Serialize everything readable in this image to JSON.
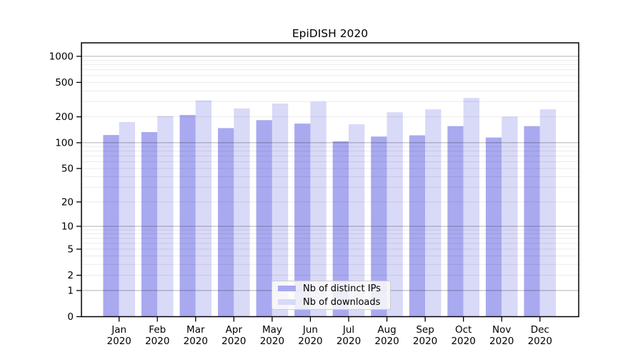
{
  "title": "EpiDISH 2020",
  "legend": {
    "items": [
      {
        "label": "Nb of distinct IPs",
        "color": "#a9a9f0"
      },
      {
        "label": "Nb of downloads",
        "color": "#d9d9f8"
      }
    ]
  },
  "chart_data": {
    "type": "bar",
    "title": "EpiDISH 2020",
    "categories": [
      "Jan 2020",
      "Feb 2020",
      "Mar 2020",
      "Apr 2020",
      "May 2020",
      "Jun 2020",
      "Jul 2020",
      "Aug 2020",
      "Sep 2020",
      "Oct 2020",
      "Nov 2020",
      "Dec 2020"
    ],
    "series": [
      {
        "name": "Nb of distinct IPs",
        "color": "#a9a9f0",
        "values": [
          123,
          133,
          210,
          148,
          183,
          167,
          104,
          118,
          122,
          156,
          115,
          156
        ]
      },
      {
        "name": "Nb of downloads",
        "color": "#d9d9f8",
        "values": [
          174,
          205,
          310,
          250,
          285,
          300,
          164,
          226,
          244,
          330,
          201,
          244
        ]
      }
    ],
    "yscale": "log1p",
    "yticks": [
      0,
      1,
      2,
      5,
      10,
      20,
      50,
      100,
      200,
      500,
      1000
    ],
    "ylim": [
      0,
      1430
    ],
    "grid": true,
    "grid_major_at": [
      1,
      10,
      100,
      1000
    ],
    "legend_position": "lower center",
    "xlabel": "",
    "ylabel": ""
  },
  "colors": {
    "axis": "#000000",
    "grid_major": "rgba(0,0,0,0.30)",
    "grid_minor": "rgba(0,0,0,0.08)"
  }
}
